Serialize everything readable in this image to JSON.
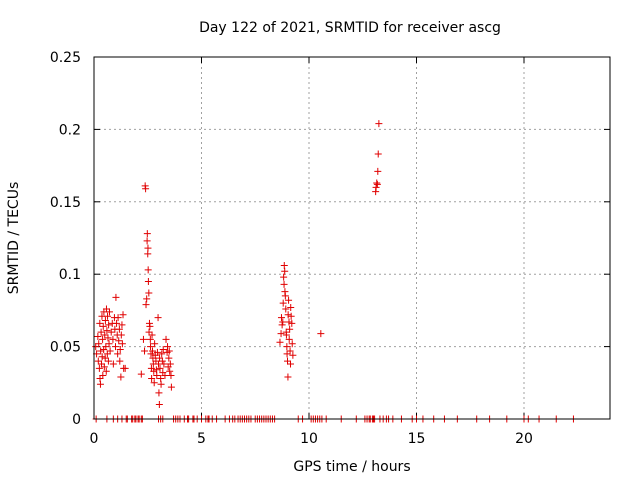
{
  "chart_data": {
    "type": "scatter",
    "title": "Day 122 of 2021, SRMTID for receiver ascg",
    "xlabel": "GPS time / hours",
    "ylabel": "SRMTID / TECUs",
    "xlim": [
      0,
      24
    ],
    "ylim": [
      0,
      0.25
    ],
    "xticks": [
      0,
      5,
      10,
      15,
      20
    ],
    "yticks": [
      0,
      0.05,
      0.1,
      0.15,
      0.2,
      0.25
    ],
    "xtick_labels": [
      "0",
      "5",
      "10",
      "15",
      "20"
    ],
    "ytick_labels": [
      "0",
      "0.05",
      "0.1",
      "0.15",
      "0.2",
      "0.25"
    ],
    "grid": true,
    "legend": false,
    "marker": "+",
    "color": "#e00000",
    "series": [
      {
        "name": "SRMTID",
        "points": [
          [
            0.08,
            0.05
          ],
          [
            0.12,
            0.045
          ],
          [
            0.18,
            0.057
          ],
          [
            0.2,
            0.04
          ],
          [
            0.22,
            0.052
          ],
          [
            0.25,
            0.035
          ],
          [
            0.27,
            0.066
          ],
          [
            0.28,
            0.028
          ],
          [
            0.3,
            0.024
          ],
          [
            0.31,
            0.047
          ],
          [
            0.33,
            0.06
          ],
          [
            0.35,
            0.038
          ],
          [
            0.37,
            0.071
          ],
          [
            0.38,
            0.043
          ],
          [
            0.4,
            0.055
          ],
          [
            0.41,
            0.03
          ],
          [
            0.43,
            0.064
          ],
          [
            0.45,
            0.048
          ],
          [
            0.46,
            0.074
          ],
          [
            0.48,
            0.036
          ],
          [
            0.5,
            0.058
          ],
          [
            0.52,
            0.042
          ],
          [
            0.53,
            0.068
          ],
          [
            0.55,
            0.05
          ],
          [
            0.57,
            0.033
          ],
          [
            0.58,
            0.076
          ],
          [
            0.6,
            0.061
          ],
          [
            0.62,
            0.045
          ],
          [
            0.63,
            0.071
          ],
          [
            0.65,
            0.056
          ],
          [
            0.67,
            0.04
          ],
          [
            0.68,
            0.065
          ],
          [
            0.7,
            0.052
          ],
          [
            0.72,
            0.074
          ],
          [
            0.75,
            0.047
          ],
          [
            0.8,
            0.06
          ],
          [
            0.85,
            0.066
          ],
          [
            0.88,
            0.055
          ],
          [
            0.9,
            0.038
          ],
          [
            0.95,
            0.07
          ],
          [
            0.97,
            0.062
          ],
          [
            1.0,
            0.05
          ],
          [
            1.02,
            0.084
          ],
          [
            1.05,
            0.066
          ],
          [
            1.08,
            0.058
          ],
          [
            1.1,
            0.045
          ],
          [
            1.12,
            0.07
          ],
          [
            1.15,
            0.054
          ],
          [
            1.18,
            0.062
          ],
          [
            1.2,
            0.04
          ],
          [
            1.22,
            0.048
          ],
          [
            1.25,
            0.029
          ],
          [
            1.27,
            0.058
          ],
          [
            1.3,
            0.065
          ],
          [
            1.32,
            0.052
          ],
          [
            1.35,
            0.072
          ],
          [
            1.38,
            0.035
          ],
          [
            1.45,
            0.035
          ],
          [
            2.2,
            0.031
          ],
          [
            2.3,
            0.055
          ],
          [
            2.35,
            0.047
          ],
          [
            2.38,
            0.161
          ],
          [
            2.4,
            0.159
          ],
          [
            2.42,
            0.079
          ],
          [
            2.45,
            0.083
          ],
          [
            2.47,
            0.123
          ],
          [
            2.48,
            0.128
          ],
          [
            2.5,
            0.114
          ],
          [
            2.51,
            0.118
          ],
          [
            2.52,
            0.103
          ],
          [
            2.53,
            0.095
          ],
          [
            2.55,
            0.087
          ],
          [
            2.56,
            0.06
          ],
          [
            2.58,
            0.066
          ],
          [
            2.6,
            0.064
          ],
          [
            2.62,
            0.055
          ],
          [
            2.63,
            0.05
          ],
          [
            2.65,
            0.045
          ],
          [
            2.67,
            0.035
          ],
          [
            2.68,
            0.028
          ],
          [
            2.7,
            0.058
          ],
          [
            2.72,
            0.047
          ],
          [
            2.74,
            0.042
          ],
          [
            2.76,
            0.038
          ],
          [
            2.78,
            0.033
          ],
          [
            2.8,
            0.025
          ],
          [
            2.82,
            0.052
          ],
          [
            2.85,
            0.044
          ],
          [
            2.88,
            0.04
          ],
          [
            2.9,
            0.034
          ],
          [
            2.92,
            0.03
          ],
          [
            2.95,
            0.046
          ],
          [
            2.98,
            0.07
          ],
          [
            3.0,
            0.038
          ],
          [
            3.02,
            0.018
          ],
          [
            3.04,
            0.01
          ],
          [
            3.05,
            0.042
          ],
          [
            3.07,
            0.035
          ],
          [
            3.1,
            0.028
          ],
          [
            3.12,
            0.024
          ],
          [
            3.15,
            0.045
          ],
          [
            3.18,
            0.04
          ],
          [
            3.2,
            0.032
          ],
          [
            3.22,
            0.048
          ],
          [
            3.25,
            0.038
          ],
          [
            3.3,
            0.03
          ],
          [
            3.35,
            0.055
          ],
          [
            3.4,
            0.046
          ],
          [
            3.42,
            0.05
          ],
          [
            3.45,
            0.036
          ],
          [
            3.48,
            0.042
          ],
          [
            3.5,
            0.047
          ],
          [
            3.52,
            0.033
          ],
          [
            3.55,
            0.038
          ],
          [
            3.58,
            0.03
          ],
          [
            3.6,
            0.022
          ],
          [
            8.65,
            0.053
          ],
          [
            8.7,
            0.059
          ],
          [
            8.72,
            0.07
          ],
          [
            8.75,
            0.065
          ],
          [
            8.78,
            0.067
          ],
          [
            8.8,
            0.08
          ],
          [
            8.82,
            0.098
          ],
          [
            8.84,
            0.093
          ],
          [
            8.85,
            0.106
          ],
          [
            8.87,
            0.102
          ],
          [
            8.88,
            0.088
          ],
          [
            8.9,
            0.085
          ],
          [
            8.92,
            0.076
          ],
          [
            8.94,
            0.06
          ],
          [
            8.95,
            0.058
          ],
          [
            8.97,
            0.05
          ],
          [
            8.98,
            0.045
          ],
          [
            9.0,
            0.04
          ],
          [
            9.02,
            0.029
          ],
          [
            9.03,
            0.072
          ],
          [
            9.05,
            0.082
          ],
          [
            9.07,
            0.067
          ],
          [
            9.08,
            0.055
          ],
          [
            9.1,
            0.062
          ],
          [
            9.12,
            0.047
          ],
          [
            9.14,
            0.038
          ],
          [
            9.15,
            0.077
          ],
          [
            9.17,
            0.071
          ],
          [
            9.2,
            0.066
          ],
          [
            9.22,
            0.052
          ],
          [
            9.25,
            0.044
          ],
          [
            10.55,
            0.059
          ],
          [
            13.1,
            0.157
          ],
          [
            13.12,
            0.16
          ],
          [
            13.15,
            0.163
          ],
          [
            13.18,
            0.162
          ],
          [
            13.2,
            0.171
          ],
          [
            13.22,
            0.183
          ],
          [
            13.25,
            0.204
          ],
          [
            0.1,
            0
          ],
          [
            0.6,
            0
          ],
          [
            0.9,
            0
          ],
          [
            1.1,
            0
          ],
          [
            1.3,
            0
          ],
          [
            1.5,
            0
          ],
          [
            1.55,
            0
          ],
          [
            1.75,
            0
          ],
          [
            1.8,
            0
          ],
          [
            1.9,
            0
          ],
          [
            1.95,
            0
          ],
          [
            2.05,
            0
          ],
          [
            2.1,
            0
          ],
          [
            2.2,
            0
          ],
          [
            2.25,
            0
          ],
          [
            3.0,
            0
          ],
          [
            3.1,
            0
          ],
          [
            3.2,
            0
          ],
          [
            3.7,
            0
          ],
          [
            3.8,
            0
          ],
          [
            3.9,
            0
          ],
          [
            4.0,
            0
          ],
          [
            4.2,
            0
          ],
          [
            4.35,
            0
          ],
          [
            4.4,
            0
          ],
          [
            4.6,
            0
          ],
          [
            4.65,
            0
          ],
          [
            4.8,
            0
          ],
          [
            5.0,
            0
          ],
          [
            5.2,
            0
          ],
          [
            5.3,
            0
          ],
          [
            5.35,
            0
          ],
          [
            5.5,
            0
          ],
          [
            5.7,
            0
          ],
          [
            6.1,
            0
          ],
          [
            6.3,
            0
          ],
          [
            6.45,
            0
          ],
          [
            6.55,
            0
          ],
          [
            6.7,
            0
          ],
          [
            6.8,
            0
          ],
          [
            6.9,
            0
          ],
          [
            7.0,
            0
          ],
          [
            7.1,
            0
          ],
          [
            7.2,
            0
          ],
          [
            7.3,
            0
          ],
          [
            7.5,
            0
          ],
          [
            7.6,
            0
          ],
          [
            7.7,
            0
          ],
          [
            7.8,
            0
          ],
          [
            7.9,
            0
          ],
          [
            8.0,
            0
          ],
          [
            8.1,
            0
          ],
          [
            8.2,
            0
          ],
          [
            8.3,
            0
          ],
          [
            8.4,
            0
          ],
          [
            9.5,
            0
          ],
          [
            9.7,
            0
          ],
          [
            10.1,
            0
          ],
          [
            10.2,
            0
          ],
          [
            10.3,
            0
          ],
          [
            10.4,
            0
          ],
          [
            10.5,
            0
          ],
          [
            10.6,
            0
          ],
          [
            10.8,
            0
          ],
          [
            11.5,
            0
          ],
          [
            12.2,
            0
          ],
          [
            12.6,
            0
          ],
          [
            12.7,
            0
          ],
          [
            12.8,
            0
          ],
          [
            12.85,
            0
          ],
          [
            12.95,
            0
          ],
          [
            13.0,
            0
          ],
          [
            13.05,
            0
          ],
          [
            13.3,
            0
          ],
          [
            13.45,
            0
          ],
          [
            13.6,
            0
          ],
          [
            13.7,
            0
          ],
          [
            13.9,
            0
          ],
          [
            14.3,
            0
          ],
          [
            14.8,
            0
          ],
          [
            15.0,
            0
          ],
          [
            15.3,
            0
          ],
          [
            15.8,
            0
          ],
          [
            16.3,
            0
          ],
          [
            16.9,
            0
          ],
          [
            17.8,
            0
          ],
          [
            18.4,
            0
          ],
          [
            19.2,
            0
          ],
          [
            20.0,
            0
          ],
          [
            20.2,
            0
          ],
          [
            20.7,
            0
          ],
          [
            21.5,
            0
          ],
          [
            22.3,
            0
          ]
        ]
      }
    ]
  }
}
